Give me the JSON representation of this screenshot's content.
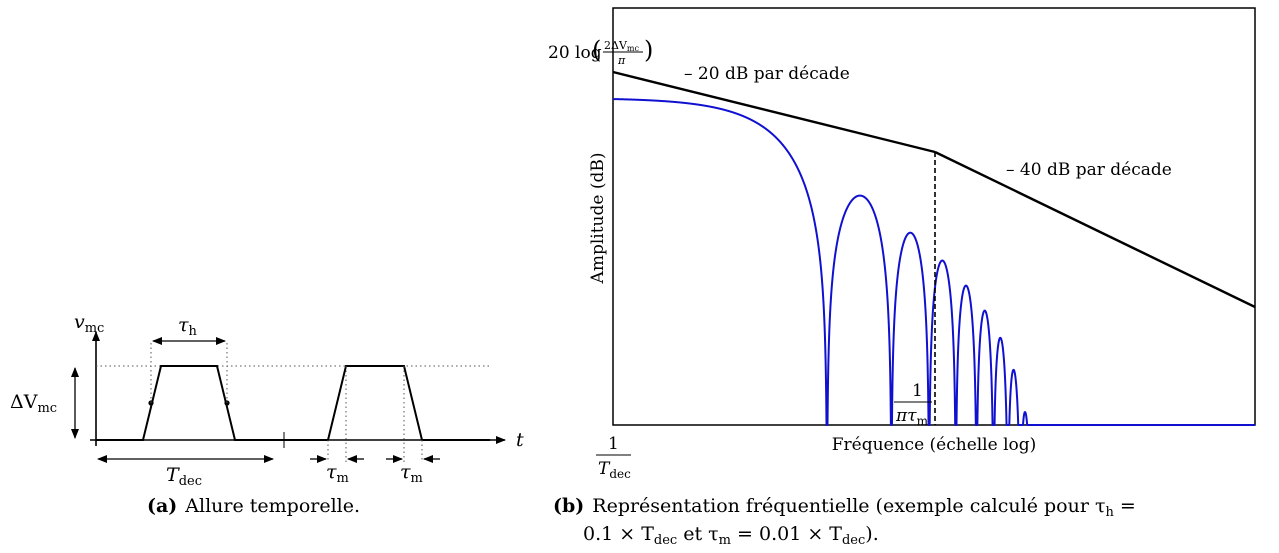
{
  "panel_a": {
    "v_label": "v",
    "v_sub": "mc",
    "t_label": "t",
    "tau_h": "τ",
    "tau_h_sub": "h",
    "delta_v": "ΔV",
    "delta_v_sub": "mc",
    "t_dec": "T",
    "t_dec_sub": "dec",
    "tau_m_left": "τ",
    "tau_m_left_sub": "m",
    "tau_m_right": "τ",
    "tau_m_right_sub": "m",
    "caption_label": "(a)",
    "caption_text": "Allure temporelle."
  },
  "panel_b": {
    "y_axis_label": "Amplitude (dB)",
    "x_axis_label": "Fréquence (échelle log)",
    "level_prefix": "20 log",
    "level_num": "2ΔV",
    "level_num_sub": "mc",
    "level_den": "π",
    "slope1_label": "– 20 dB par décade",
    "slope2_label": "– 40 dB par décade",
    "corner_num": "1",
    "corner_den": "πτ",
    "corner_den_sub": "m",
    "origin_num": "1",
    "origin_den": "T",
    "origin_den_sub": "dec",
    "caption_label": "(b)",
    "caption_line1": "Représentation fréquentielle (exemple calculé pour τ",
    "caption_line1_sub": "h",
    "caption_line1_end": " =",
    "caption_line2": "0.1 × T",
    "caption_line2_sub1": "dec",
    "caption_line2_mid": " et τ",
    "caption_line2_sub2": "m",
    "caption_line2_mid2": " = 0.01 × T",
    "caption_line2_sub3": "dec",
    "caption_line2_end": ").",
    "trace_color": "#1010d0"
  }
}
